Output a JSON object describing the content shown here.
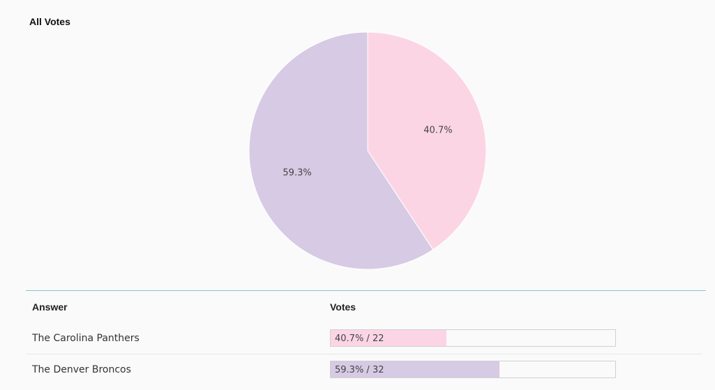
{
  "section_title": "All Votes",
  "chart_data": {
    "type": "pie",
    "slices": [
      {
        "label": "The Carolina Panthers",
        "percent": 40.7,
        "votes": 22,
        "display": "40.7%",
        "color": "#fcd5e5"
      },
      {
        "label": "The Denver Broncos",
        "percent": 59.3,
        "votes": 32,
        "display": "59.3%",
        "color": "#d7cae4"
      }
    ],
    "border_color": "#ffffff"
  },
  "table": {
    "headers": {
      "answer": "Answer",
      "votes": "Votes"
    },
    "rows": [
      {
        "answer": "The Carolina Panthers",
        "bar_label": "40.7% / 22",
        "percent": 40.7,
        "color": "#fcd5e5"
      },
      {
        "answer": "The Denver Broncos",
        "bar_label": "59.3% / 32",
        "percent": 59.3,
        "color": "#d7cae4"
      }
    ]
  }
}
